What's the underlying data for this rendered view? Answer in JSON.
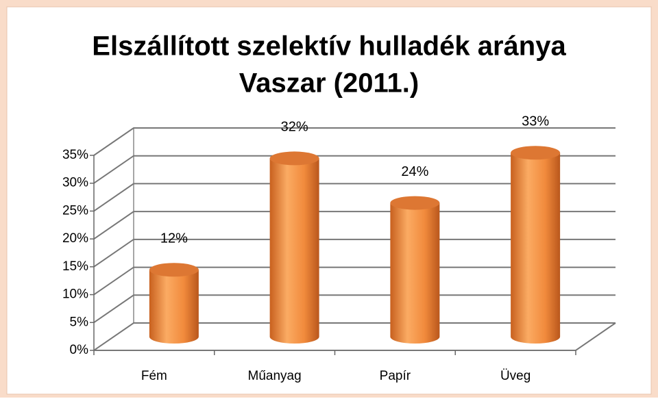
{
  "chart_data": {
    "type": "bar3d",
    "title": [
      "Elszállított szelektív hulladék aránya",
      "Vaszar (2011.)"
    ],
    "categories": [
      "Fém",
      "Műanyag",
      "Papír",
      "Üveg"
    ],
    "values": [
      12,
      32,
      24,
      33
    ],
    "value_labels": [
      "12%",
      "32%",
      "24%",
      "33%"
    ],
    "color": "#f79646",
    "ylim": [
      0,
      35
    ],
    "yticks": [
      {
        "value": 0,
        "label": "0%"
      },
      {
        "value": 5,
        "label": "5%"
      },
      {
        "value": 10,
        "label": "10%"
      },
      {
        "value": 15,
        "label": "15%"
      },
      {
        "value": 20,
        "label": "20%"
      },
      {
        "value": 25,
        "label": "25%"
      },
      {
        "value": 30,
        "label": "30%"
      },
      {
        "value": 35,
        "label": "35%"
      }
    ],
    "grid": true
  }
}
